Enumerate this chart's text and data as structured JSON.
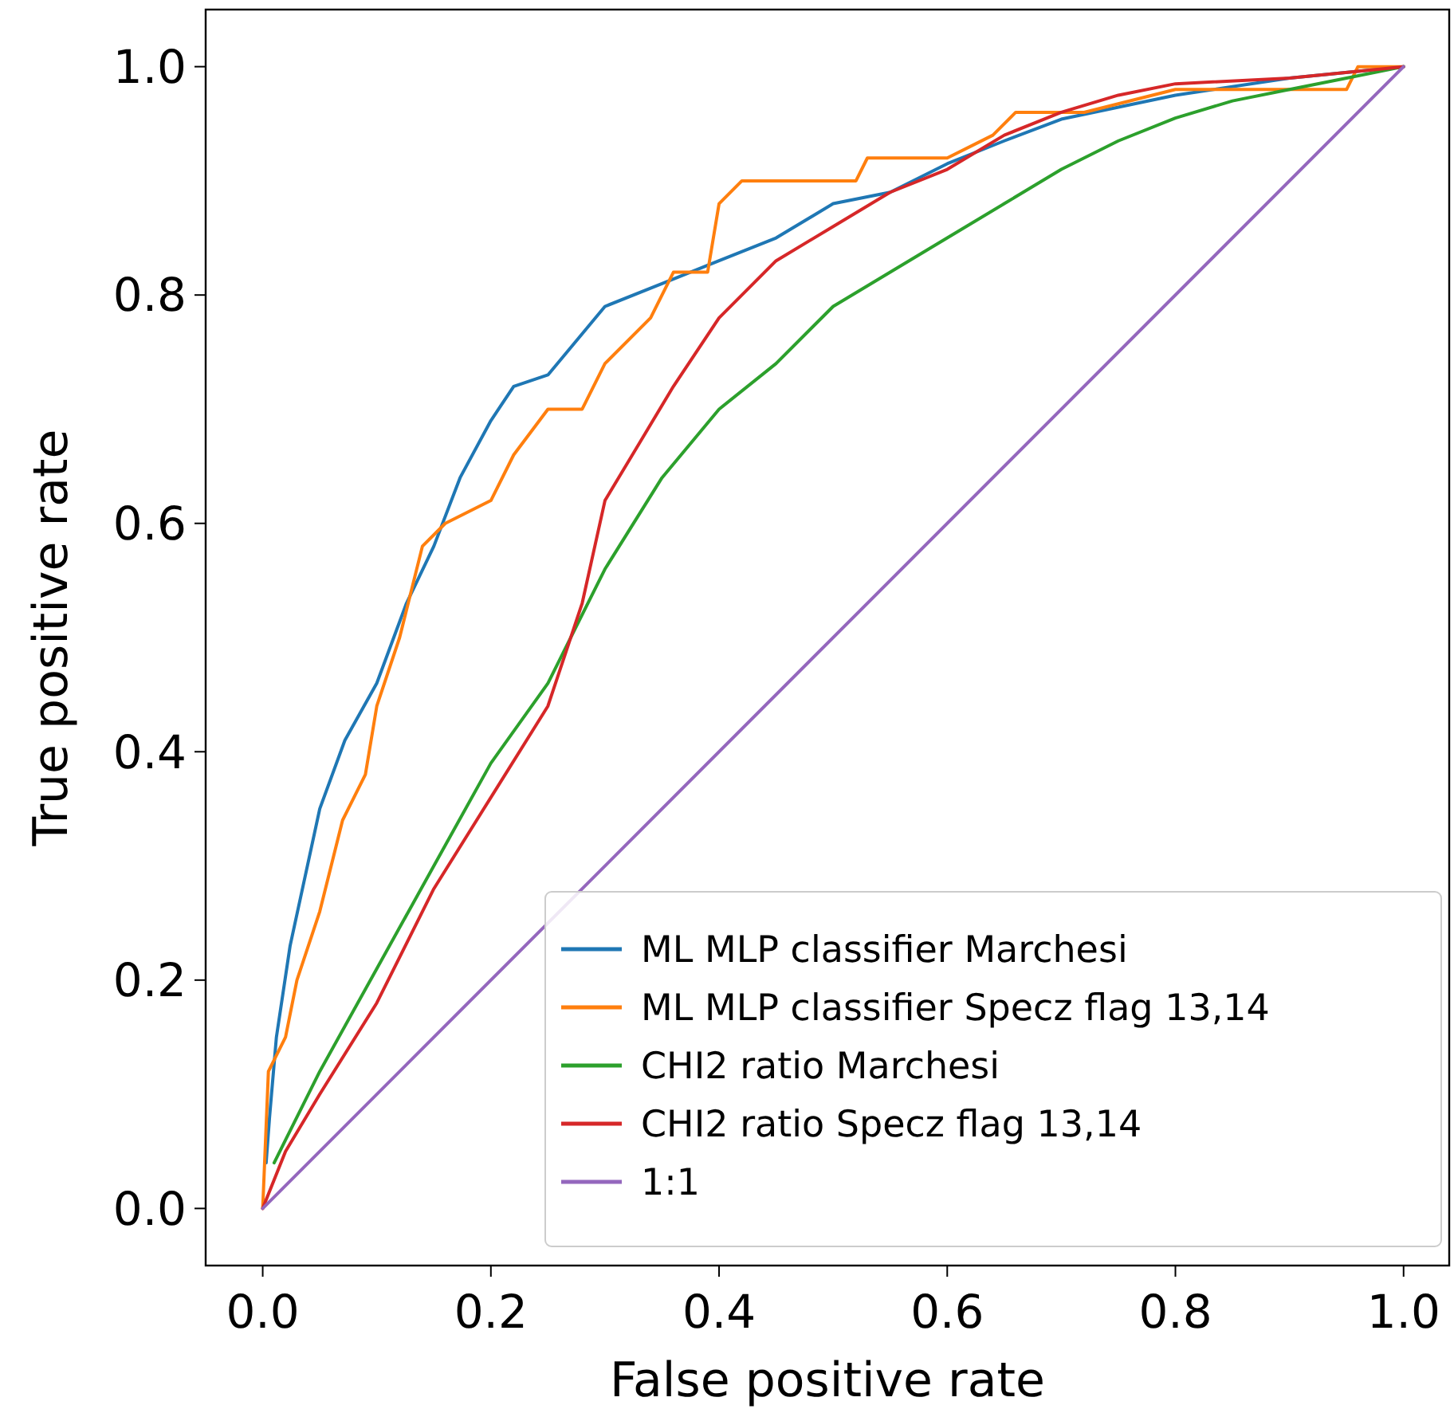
{
  "chart_data": {
    "type": "line",
    "xlabel": "False positive rate",
    "ylabel": "True positive rate",
    "xlim": [
      -0.05,
      1.04
    ],
    "ylim": [
      -0.05,
      1.05
    ],
    "xticks": [
      {
        "value": 0,
        "label": "0.0"
      },
      0.2,
      0.4,
      0.6,
      0.8,
      {
        "value": 1,
        "label": "1.0"
      }
    ],
    "yticks": [
      {
        "value": 0,
        "label": "0.0"
      },
      0.2,
      0.4,
      0.6,
      0.8,
      {
        "value": 1,
        "label": "1.0"
      }
    ],
    "grid": false,
    "legend": "bottom right",
    "marker": "none",
    "line_style": "solid",
    "series": [
      {
        "name": "ML MLP classifier Marchesi",
        "color": "#1f77b4",
        "x": [
          0.003,
          0.006,
          0.012,
          0.024,
          0.05,
          0.072,
          0.1,
          0.126,
          0.15,
          0.173,
          0.2,
          0.22,
          0.25,
          0.3,
          0.35,
          0.4,
          0.45,
          0.5,
          0.55,
          0.6,
          0.65,
          0.7,
          0.8,
          0.9,
          1
        ],
        "values": [
          0.04,
          0.08,
          0.15,
          0.23,
          0.35,
          0.41,
          0.46,
          0.53,
          0.58,
          0.64,
          0.69,
          0.72,
          0.73,
          0.79,
          0.81,
          0.83,
          0.85,
          0.88,
          0.89,
          0.915,
          0.935,
          0.954,
          0.975,
          0.99,
          1
        ]
      },
      {
        "name": "ML MLP classifier Specz flag 13,14",
        "color": "#ff7f0e",
        "x": [
          0,
          0.005,
          0.02,
          0.03,
          0.05,
          0.07,
          0.09,
          0.1,
          0.12,
          0.14,
          0.16,
          0.2,
          0.22,
          0.25,
          0.28,
          0.3,
          0.34,
          0.36,
          0.39,
          0.4,
          0.42,
          0.52,
          0.53,
          0.6,
          0.64,
          0.66,
          0.72,
          0.8,
          0.95,
          0.96,
          1
        ],
        "values": [
          0,
          0.12,
          0.15,
          0.2,
          0.26,
          0.34,
          0.38,
          0.44,
          0.5,
          0.58,
          0.6,
          0.62,
          0.66,
          0.7,
          0.7,
          0.74,
          0.78,
          0.82,
          0.82,
          0.88,
          0.9,
          0.9,
          0.92,
          0.92,
          0.94,
          0.96,
          0.96,
          0.98,
          0.98,
          1,
          1
        ]
      },
      {
        "name": "CHI2 ratio Marchesi",
        "color": "#2ca02c",
        "x": [
          0.01,
          0.02,
          0.05,
          0.1,
          0.15,
          0.2,
          0.25,
          0.3,
          0.35,
          0.4,
          0.45,
          0.5,
          0.55,
          0.6,
          0.65,
          0.7,
          0.75,
          0.8,
          0.85,
          0.9,
          0.95,
          1
        ],
        "values": [
          0.04,
          0.06,
          0.12,
          0.21,
          0.3,
          0.39,
          0.46,
          0.56,
          0.64,
          0.7,
          0.74,
          0.79,
          0.82,
          0.85,
          0.88,
          0.91,
          0.935,
          0.955,
          0.97,
          0.98,
          0.99,
          1
        ]
      },
      {
        "name": "CHI2 ratio Specz flag 13,14",
        "color": "#d62728",
        "x": [
          0,
          0.02,
          0.05,
          0.1,
          0.15,
          0.2,
          0.25,
          0.28,
          0.3,
          0.33,
          0.36,
          0.4,
          0.45,
          0.5,
          0.55,
          0.6,
          0.65,
          0.7,
          0.75,
          0.8,
          0.9,
          1
        ],
        "values": [
          0,
          0.05,
          0.1,
          0.18,
          0.28,
          0.36,
          0.44,
          0.53,
          0.62,
          0.67,
          0.72,
          0.78,
          0.83,
          0.86,
          0.89,
          0.91,
          0.94,
          0.96,
          0.975,
          0.985,
          0.99,
          1
        ]
      },
      {
        "name": "1:1",
        "color": "#9467bd",
        "x": [
          0,
          1
        ],
        "values": [
          0,
          1
        ]
      }
    ]
  }
}
